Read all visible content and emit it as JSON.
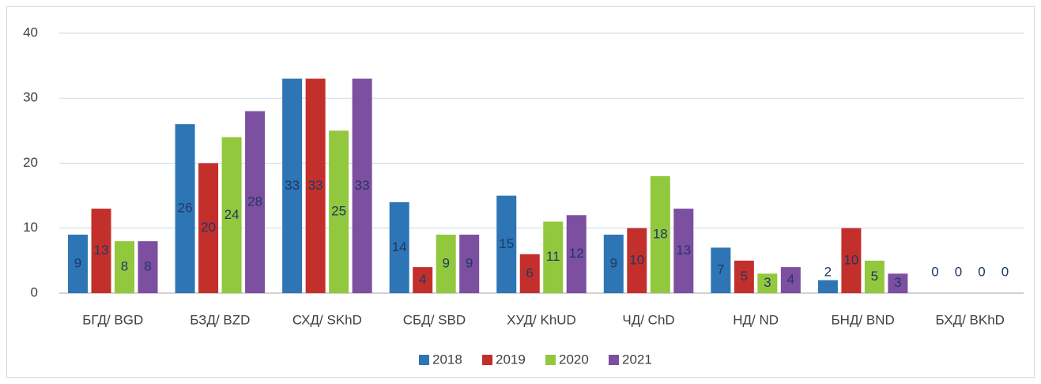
{
  "chart_data": {
    "type": "bar",
    "categories": [
      "БГД/ BGD",
      "БЗД/ BZD",
      "СХД/ SKhD",
      "СБД/ SBD",
      "ХУД/ KhUD",
      "ЧД/ ChD",
      "НД/ ND",
      "БНД/ BND",
      "БХД/ BKhD"
    ],
    "series": [
      {
        "name": "2018",
        "color": "#2e75b6",
        "values": [
          9,
          26,
          33,
          14,
          15,
          9,
          7,
          2,
          0
        ]
      },
      {
        "name": "2019",
        "color": "#c3302b",
        "values": [
          13,
          20,
          33,
          4,
          6,
          10,
          5,
          10,
          0
        ]
      },
      {
        "name": "2020",
        "color": "#92c83e",
        "values": [
          8,
          24,
          25,
          9,
          11,
          18,
          3,
          5,
          0
        ]
      },
      {
        "name": "2021",
        "color": "#7d4fa0",
        "values": [
          8,
          28,
          33,
          9,
          12,
          13,
          4,
          3,
          0
        ]
      }
    ],
    "ylim": [
      0,
      40
    ],
    "yticks": [
      0,
      10,
      20,
      30,
      40
    ],
    "grid": true,
    "legend": "bottom"
  }
}
